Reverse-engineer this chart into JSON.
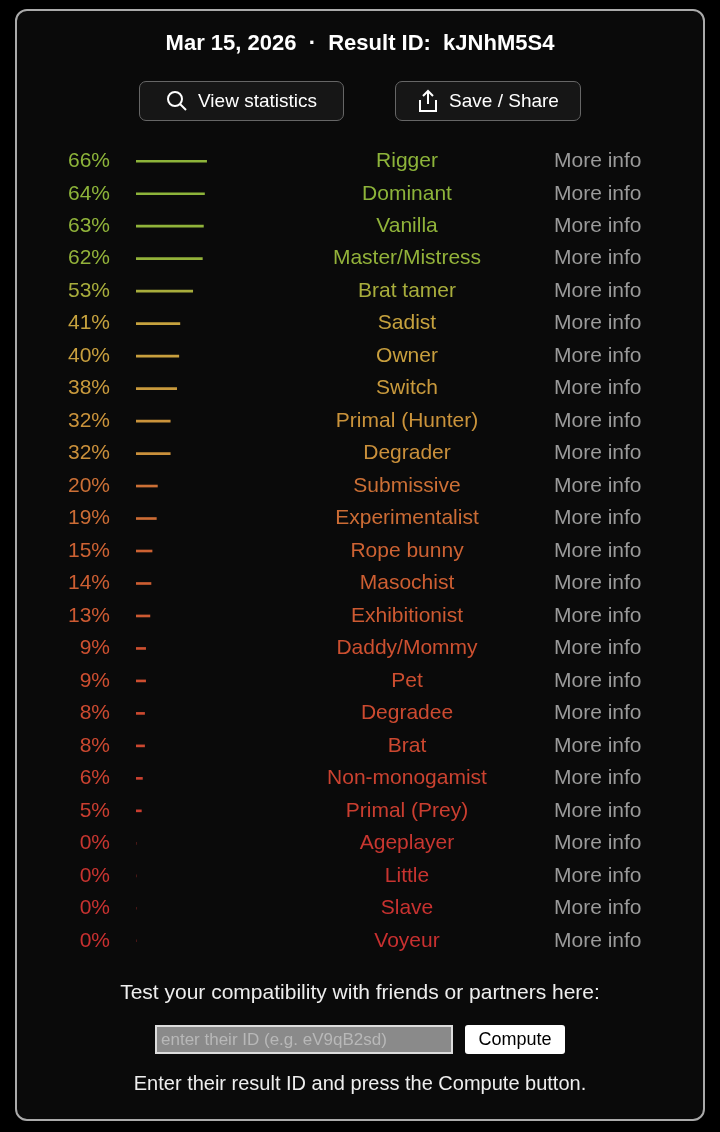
{
  "chart_data": {
    "type": "bar",
    "orientation": "horizontal",
    "title": "Mar 15, 2026  ·  Result ID:  kJNhM5S4",
    "categories": [
      "Rigger",
      "Dominant",
      "Vanilla",
      "Master/Mistress",
      "Brat tamer",
      "Sadist",
      "Owner",
      "Switch",
      "Primal (Hunter)",
      "Degrader",
      "Submissive",
      "Experimentalist",
      "Rope bunny",
      "Masochist",
      "Exhibitionist",
      "Daddy/Mommy",
      "Pet",
      "Degradee",
      "Brat",
      "Non-monogamist",
      "Primal (Prey)",
      "Ageplayer",
      "Little",
      "Slave",
      "Voyeur"
    ],
    "values": [
      66,
      64,
      63,
      62,
      53,
      41,
      40,
      38,
      32,
      32,
      20,
      19,
      15,
      14,
      13,
      9,
      9,
      8,
      8,
      6,
      5,
      0,
      0,
      0,
      0
    ],
    "value_labels": [
      "66%",
      "64%",
      "63%",
      "62%",
      "53%",
      "41%",
      "40%",
      "38%",
      "32%",
      "32%",
      "20%",
      "19%",
      "15%",
      "14%",
      "13%",
      "9%",
      "9%",
      "8%",
      "8%",
      "6%",
      "5%",
      "0%",
      "0%",
      "0%",
      "0%"
    ],
    "colors": [
      "#8db43a",
      "#8db43a",
      "#90b33a",
      "#93b23a",
      "#a8ad3c",
      "#c6a23e",
      "#c89f3e",
      "#c99a3d",
      "#ca933b",
      "#ca903b",
      "#cc7036",
      "#cc6c35",
      "#cd6233",
      "#cd5e32",
      "#cd5a32",
      "#cd5030",
      "#cd4e30",
      "#cc4a30",
      "#cc4830",
      "#cb4230",
      "#ca3e30",
      "#c83630",
      "#c83430",
      "#c83230",
      "#c83030"
    ],
    "annotations": [
      "View statistics",
      "Save / Share",
      "Test your compatibility with friends or partners here:",
      "enter their ID (e.g. eV9qB2sd)",
      "Compute",
      "Enter their result ID and press the Compute button.",
      "More info",
      "More info",
      "More info",
      "More info",
      "More info",
      "More info",
      "More info",
      "More info",
      "More info",
      "More info",
      "More info",
      "More info",
      "More info",
      "More info",
      "More info",
      "More info",
      "More info",
      "More info",
      "More info",
      "More info",
      "More info",
      "More info",
      "More info",
      "More info",
      "More info"
    ]
  }
}
